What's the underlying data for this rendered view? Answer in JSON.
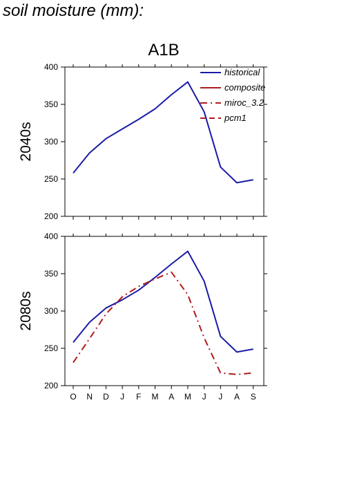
{
  "page": {
    "title": "soil moisture (mm):"
  },
  "chart_data": {
    "type": "line",
    "scenario": "A1B",
    "categories": [
      "O",
      "N",
      "D",
      "J",
      "F",
      "M",
      "A",
      "M",
      "J",
      "J",
      "A",
      "S"
    ],
    "ylim": [
      200,
      400
    ],
    "yticks": [
      200,
      250,
      300,
      350,
      400
    ],
    "legend": {
      "placement": "top-right",
      "entries": [
        {
          "name": "historical",
          "color": "#1a1aa8",
          "dash": "solid"
        },
        {
          "name": "composite",
          "color": "#b01a1a",
          "dash": "solid"
        },
        {
          "name": "miroc_3.2",
          "color": "#b01a1a",
          "dash": "dashdot"
        },
        {
          "name": "pcm1",
          "color": "#b01a1a",
          "dash": "dashed"
        }
      ]
    },
    "panels": [
      {
        "label": "2040s",
        "series": [
          {
            "name": "historical",
            "values": [
              258,
              285,
              304,
              317,
              330,
              344,
              363,
              380,
              340,
              266,
              245,
              249
            ]
          }
        ]
      },
      {
        "label": "2080s",
        "series": [
          {
            "name": "historical",
            "values": [
              258,
              285,
              304,
              315,
              328,
              345,
              363,
              380,
              340,
              266,
              245,
              249
            ]
          },
          {
            "name": "miroc_3.2",
            "values": [
              231,
              263,
              296,
              319,
              333,
              343,
              352,
              322,
              264,
              217,
              215,
              217
            ]
          }
        ]
      }
    ]
  }
}
